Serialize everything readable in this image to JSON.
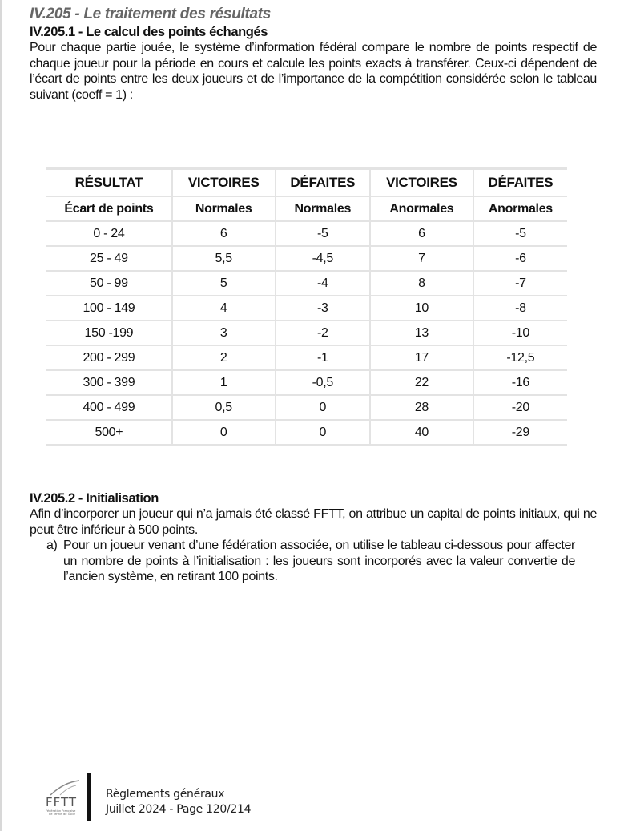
{
  "section_title": "IV.205 - Le traitement des résultats",
  "sub1": {
    "title": "IV.205.1 - Le calcul des points échangés",
    "paragraph": "Pour chaque partie jouée, le système d’information fédéral compare le nombre de points respectif de chaque joueur pour la période en cours et calcule les points exacts à transférer. Ceux-ci dépendent de l’écart de points entre les deux joueurs et de l’importance de la compétition considérée selon le tableau suivant (coeff = 1) :"
  },
  "table": {
    "header1": [
      "RÉSULTAT",
      "VICTOIRES",
      "DÉFAITES",
      "VICTOIRES",
      "DÉFAITES"
    ],
    "header2": [
      "Écart de points",
      "Normales",
      "Normales",
      "Anormales",
      "Anormales"
    ],
    "rows": [
      [
        "0 - 24",
        "6",
        "-5",
        "6",
        "-5"
      ],
      [
        "25 - 49",
        "5,5",
        "-4,5",
        "7",
        "-6"
      ],
      [
        "50 - 99",
        "5",
        "-4",
        "8",
        "-7"
      ],
      [
        "100 - 149",
        "4",
        "-3",
        "10",
        "-8"
      ],
      [
        "150 -199",
        "3",
        "-2",
        "13",
        "-10"
      ],
      [
        "200 - 299",
        "2",
        "-1",
        "17",
        "-12,5"
      ],
      [
        "300 - 399",
        "1",
        "-0,5",
        "22",
        "-16"
      ],
      [
        "400 - 499",
        "0,5",
        "0",
        "28",
        "-20"
      ],
      [
        "500+",
        "0",
        "0",
        "40",
        "-29"
      ]
    ]
  },
  "sub2": {
    "title": "IV.205.2 - Initialisation",
    "paragraph": "Afin d’incorporer un joueur qui n’a jamais été classé FFTT, on attribue un capital de points initiaux, qui ne peut être inférieur à 500 points.",
    "item_a_label": "a)",
    "item_a": "Pour un joueur venant d’une fédération associée, on utilise le tableau ci-dessous pour affecter un nombre de points à l’initialisation : les joueurs sont incorporés avec la valeur convertie de l’ancien système, en retirant 100 points."
  },
  "footer": {
    "logo_text": "FFTT",
    "logo_subtitle": "Fédération Française de Tennis de Table",
    "line1": "Règlements généraux",
    "line2": "Juillet 2024 - Page 120/214"
  }
}
